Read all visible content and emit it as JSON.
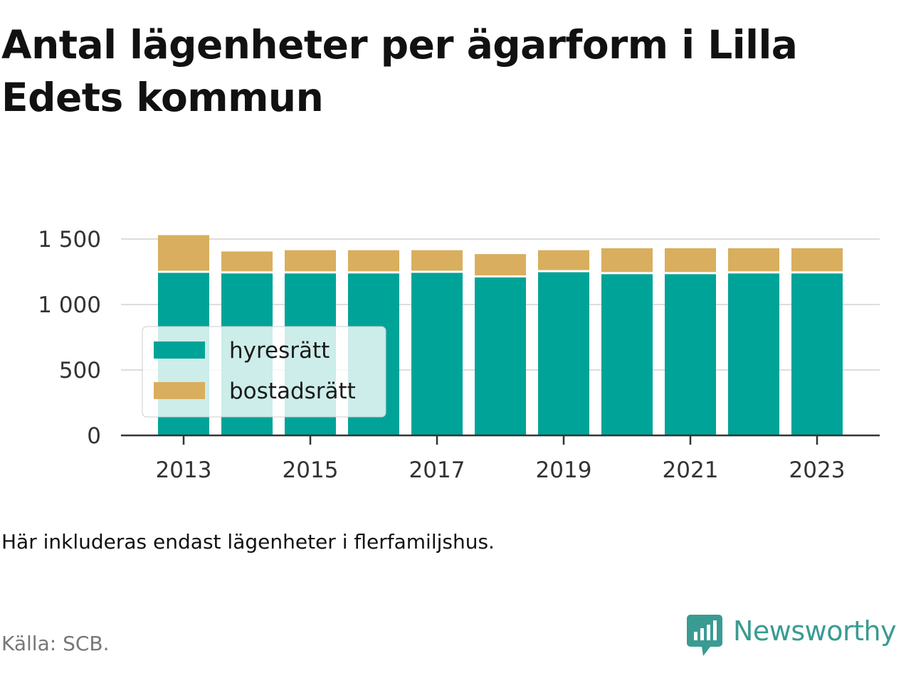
{
  "title": "Antal lägenheter per ägarform i Lilla Edets kommun",
  "note": "Här inkluderas endast lägenheter i flerfamiljshus.",
  "source": "Källa: SCB.",
  "brand": {
    "name": "Newsworthy",
    "icon": "newsworthy-logo-icon",
    "color": "#3a9b92"
  },
  "colors": {
    "hyresratt": "#00a398",
    "bostadsratt": "#d9ae5e",
    "grid": "#dddddd",
    "axis": "#333333"
  },
  "chart_data": {
    "type": "bar",
    "stacked": true,
    "categories": [
      "2013",
      "2014",
      "2015",
      "2016",
      "2017",
      "2018",
      "2019",
      "2020",
      "2021",
      "2022",
      "2023"
    ],
    "x_tick_labels": [
      "2013",
      "2015",
      "2017",
      "2019",
      "2021",
      "2023"
    ],
    "y_tick_labels": [
      "0",
      "500",
      "1 000",
      "1 500"
    ],
    "yticks": [
      0,
      500,
      1000,
      1500
    ],
    "ylim": [
      0,
      1500
    ],
    "series": [
      {
        "name": "hyresrätt",
        "values": [
          1250,
          1245,
          1245,
          1245,
          1250,
          1215,
          1255,
          1240,
          1240,
          1245,
          1245
        ]
      },
      {
        "name": "bostadsrätt",
        "values": [
          280,
          160,
          170,
          170,
          165,
          170,
          160,
          190,
          190,
          185,
          185
        ]
      }
    ],
    "legend": {
      "position": "inside-left"
    },
    "grid": true,
    "xlabel": "",
    "ylabel": ""
  }
}
